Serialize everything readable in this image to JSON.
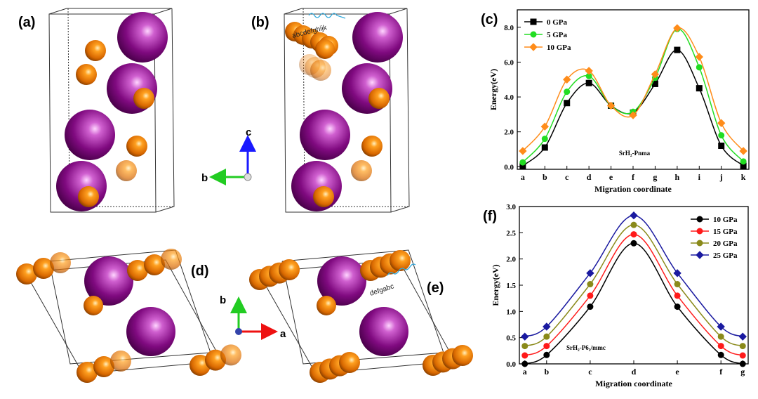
{
  "structures": {
    "labels": [
      "(a)",
      "(b)",
      "(d)",
      "(e)"
    ],
    "axes_bc": [
      "c",
      "b"
    ],
    "axes_ba": [
      "b",
      "a"
    ],
    "sequence_b": "abcdefghijk",
    "sequence_e": "defgabc"
  },
  "chart_data": [
    {
      "type": "line",
      "panel_label": "(c)",
      "x_label": "Migration coordinate",
      "y_label": "Energy(eV)",
      "annotation": "SrH₂-Pnma",
      "categories": [
        "a",
        "b",
        "c",
        "d",
        "e",
        "f",
        "g",
        "h",
        "i",
        "j",
        "k"
      ],
      "ylim": [
        -0.15,
        9
      ],
      "yticks": [
        {
          "value": 0,
          "label": "0.0"
        },
        {
          "value": 2,
          "label": "2.0"
        },
        {
          "value": 4,
          "label": "4.0"
        },
        {
          "value": 6,
          "label": "6.0"
        },
        {
          "value": 8,
          "label": "8.0"
        }
      ],
      "legend": "top-left",
      "series": [
        {
          "name": "0 GPa",
          "color": "#000000",
          "marker": "square",
          "values": [
            0.05,
            1.1,
            3.65,
            4.8,
            3.5,
            3.1,
            4.75,
            6.7,
            4.5,
            1.2,
            0.05
          ]
        },
        {
          "name": "5 GPa",
          "color": "#22dd22",
          "marker": "circle",
          "values": [
            0.25,
            1.6,
            4.3,
            5.2,
            3.5,
            3.15,
            5.1,
            7.9,
            5.7,
            1.8,
            0.3
          ]
        },
        {
          "name": "10 GPa",
          "color": "#ff8c1a",
          "marker": "diamond",
          "values": [
            0.9,
            2.3,
            5.0,
            5.5,
            3.5,
            2.95,
            5.3,
            7.95,
            6.3,
            2.5,
            0.9
          ]
        }
      ]
    },
    {
      "type": "line",
      "panel_label": "(f)",
      "x_label": "Migration coordinate",
      "y_label": "Energy(eV)",
      "annotation": "SrH₂-P6₃/mmc",
      "x": [
        0,
        1,
        3,
        5,
        7,
        9,
        10
      ],
      "xlim": [
        -0.25,
        10.25
      ],
      "xticks": [
        {
          "value": 0,
          "label": "a"
        },
        {
          "value": 1,
          "label": "b"
        },
        {
          "value": 3,
          "label": "c"
        },
        {
          "value": 5,
          "label": "d"
        },
        {
          "value": 7,
          "label": "e"
        },
        {
          "value": 9,
          "label": "f"
        },
        {
          "value": 10,
          "label": "g"
        }
      ],
      "ylim": [
        0,
        3
      ],
      "yticks": [
        {
          "value": 0,
          "label": "0.0"
        },
        {
          "value": 0.5,
          "label": "0.5"
        },
        {
          "value": 1,
          "label": "1.0"
        },
        {
          "value": 1.5,
          "label": "1.5"
        },
        {
          "value": 2,
          "label": "2.0"
        },
        {
          "value": 2.5,
          "label": "2.5"
        },
        {
          "value": 3,
          "label": "3.0"
        }
      ],
      "legend": "top-right",
      "series": [
        {
          "name": "10 GPa",
          "color": "#000000",
          "marker": "circle",
          "values": [
            0.0,
            0.17,
            1.09,
            2.3,
            1.09,
            0.17,
            0.0
          ]
        },
        {
          "name": "15 GPa",
          "color": "#ff1a1a",
          "marker": "circle",
          "values": [
            0.16,
            0.34,
            1.3,
            2.47,
            1.3,
            0.34,
            0.16
          ]
        },
        {
          "name": "20 GPa",
          "color": "#8a8a1a",
          "marker": "circle",
          "values": [
            0.34,
            0.52,
            1.52,
            2.65,
            1.52,
            0.52,
            0.34
          ]
        },
        {
          "name": "25 GPa",
          "color": "#1a1aa0",
          "marker": "diamond",
          "values": [
            0.52,
            0.71,
            1.73,
            2.83,
            1.73,
            0.71,
            0.52
          ]
        }
      ]
    }
  ]
}
